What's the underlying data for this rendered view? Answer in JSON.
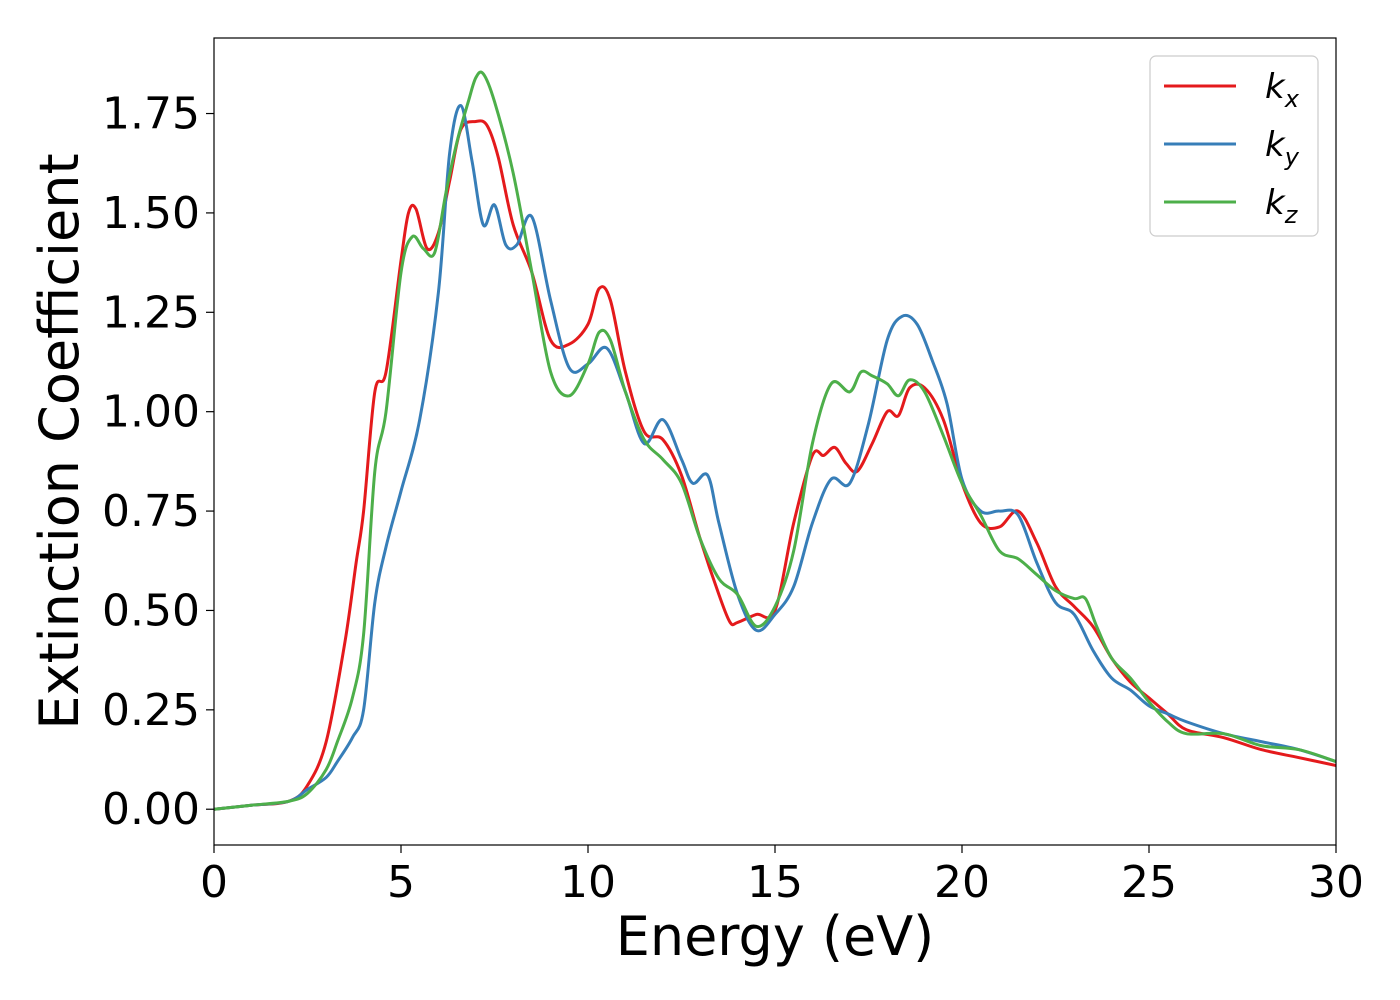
{
  "chart_data": {
    "type": "line",
    "xlabel": "Energy (eV)",
    "ylabel": "Extinction Coefficient",
    "xlim": [
      0,
      30
    ],
    "ylim": [
      -0.09,
      1.94
    ],
    "xticks": [
      0,
      5,
      10,
      15,
      20,
      25,
      30
    ],
    "xtick_labels": [
      "0",
      "5",
      "10",
      "15",
      "20",
      "25",
      "30"
    ],
    "yticks": [
      0,
      0.25,
      0.5,
      0.75,
      1.0,
      1.25,
      1.5,
      1.75
    ],
    "ytick_labels": [
      "0.00",
      "0.25",
      "0.50",
      "0.75",
      "1.00",
      "1.25",
      "1.50",
      "1.75"
    ],
    "grid": false,
    "legend_position": "top-right",
    "series": [
      {
        "name": "kx",
        "legend_base": "k",
        "legend_sub": "x",
        "color": "#e41a1c",
        "x": [
          0,
          1,
          2,
          2.5,
          3,
          3.5,
          3.8,
          4.0,
          4.3,
          4.6,
          5.0,
          5.2,
          5.4,
          5.7,
          6.0,
          6.3,
          6.6,
          7.0,
          7.3,
          7.6,
          8.0,
          8.5,
          9.0,
          9.5,
          10.0,
          10.3,
          10.6,
          11.0,
          11.5,
          12.0,
          12.5,
          13.0,
          13.5,
          13.8,
          14.0,
          14.5,
          15.0,
          15.5,
          16.0,
          16.3,
          16.6,
          16.9,
          17.2,
          17.6,
          18.0,
          18.3,
          18.6,
          19.0,
          19.5,
          20.0,
          20.5,
          21.0,
          21.5,
          22.0,
          22.5,
          23.0,
          23.5,
          24.0,
          24.5,
          25.0,
          25.5,
          26.0,
          27.0,
          28.0,
          29.0,
          30.0
        ],
        "values": [
          0.0,
          0.01,
          0.02,
          0.06,
          0.17,
          0.42,
          0.62,
          0.75,
          1.05,
          1.1,
          1.38,
          1.5,
          1.51,
          1.41,
          1.45,
          1.58,
          1.71,
          1.73,
          1.72,
          1.64,
          1.47,
          1.35,
          1.18,
          1.17,
          1.22,
          1.31,
          1.28,
          1.1,
          0.95,
          0.93,
          0.84,
          0.68,
          0.54,
          0.47,
          0.47,
          0.49,
          0.5,
          0.72,
          0.89,
          0.89,
          0.91,
          0.87,
          0.85,
          0.92,
          1.0,
          0.99,
          1.06,
          1.06,
          0.98,
          0.82,
          0.72,
          0.71,
          0.75,
          0.67,
          0.56,
          0.51,
          0.46,
          0.38,
          0.32,
          0.28,
          0.24,
          0.2,
          0.18,
          0.15,
          0.13,
          0.11
        ]
      },
      {
        "name": "ky",
        "legend_base": "k",
        "legend_sub": "y",
        "color": "#377eb8",
        "x": [
          0,
          1,
          2,
          2.5,
          3,
          3.3,
          3.7,
          4.0,
          4.3,
          4.6,
          5.0,
          5.5,
          6.0,
          6.3,
          6.6,
          6.9,
          7.2,
          7.5,
          7.8,
          8.1,
          8.5,
          9.0,
          9.5,
          10.0,
          10.5,
          11.0,
          11.5,
          12.0,
          12.5,
          12.8,
          13.2,
          13.5,
          14.0,
          14.5,
          15.0,
          15.5,
          16.0,
          16.5,
          17.0,
          17.5,
          18.0,
          18.4,
          18.8,
          19.2,
          19.6,
          20.0,
          20.5,
          21.0,
          21.5,
          22.0,
          22.5,
          23.0,
          23.5,
          24.0,
          24.5,
          25.0,
          25.5,
          26.0,
          27.0,
          28.0,
          29.0,
          30.0
        ],
        "values": [
          0.0,
          0.01,
          0.02,
          0.05,
          0.08,
          0.12,
          0.18,
          0.25,
          0.52,
          0.66,
          0.8,
          0.98,
          1.3,
          1.65,
          1.77,
          1.63,
          1.47,
          1.52,
          1.42,
          1.42,
          1.49,
          1.28,
          1.11,
          1.12,
          1.16,
          1.05,
          0.92,
          0.98,
          0.88,
          0.82,
          0.84,
          0.72,
          0.54,
          0.45,
          0.49,
          0.56,
          0.72,
          0.83,
          0.82,
          0.97,
          1.18,
          1.24,
          1.22,
          1.13,
          1.02,
          0.83,
          0.75,
          0.75,
          0.74,
          0.62,
          0.52,
          0.49,
          0.4,
          0.33,
          0.3,
          0.26,
          0.24,
          0.22,
          0.19,
          0.17,
          0.15,
          0.12
        ]
      },
      {
        "name": "kz",
        "legend_base": "k",
        "legend_sub": "z",
        "color": "#4daf4a",
        "x": [
          0,
          1,
          2,
          2.5,
          3,
          3.3,
          3.7,
          4.0,
          4.3,
          4.6,
          5.0,
          5.3,
          5.6,
          5.9,
          6.2,
          6.5,
          6.8,
          7.0,
          7.2,
          7.5,
          8.0,
          8.5,
          9.0,
          9.5,
          10.0,
          10.3,
          10.6,
          11.0,
          11.5,
          12.0,
          12.5,
          13.0,
          13.5,
          14.0,
          14.5,
          15.0,
          15.5,
          16.0,
          16.5,
          17.0,
          17.3,
          17.6,
          18.0,
          18.3,
          18.6,
          19.0,
          19.5,
          20.0,
          20.5,
          21.0,
          21.5,
          22.0,
          22.5,
          23.0,
          23.3,
          23.6,
          24.0,
          24.5,
          25.0,
          25.5,
          26.0,
          27.0,
          28.0,
          29.0,
          30.0
        ],
        "values": [
          0.0,
          0.01,
          0.02,
          0.04,
          0.1,
          0.17,
          0.28,
          0.44,
          0.85,
          1.0,
          1.35,
          1.44,
          1.41,
          1.4,
          1.55,
          1.68,
          1.78,
          1.84,
          1.85,
          1.78,
          1.6,
          1.35,
          1.1,
          1.04,
          1.12,
          1.2,
          1.18,
          1.05,
          0.93,
          0.88,
          0.82,
          0.68,
          0.58,
          0.54,
          0.46,
          0.51,
          0.65,
          0.92,
          1.07,
          1.05,
          1.1,
          1.09,
          1.07,
          1.04,
          1.08,
          1.05,
          0.94,
          0.82,
          0.74,
          0.65,
          0.63,
          0.59,
          0.55,
          0.53,
          0.53,
          0.46,
          0.38,
          0.33,
          0.27,
          0.22,
          0.19,
          0.19,
          0.16,
          0.15,
          0.12
        ]
      }
    ]
  }
}
